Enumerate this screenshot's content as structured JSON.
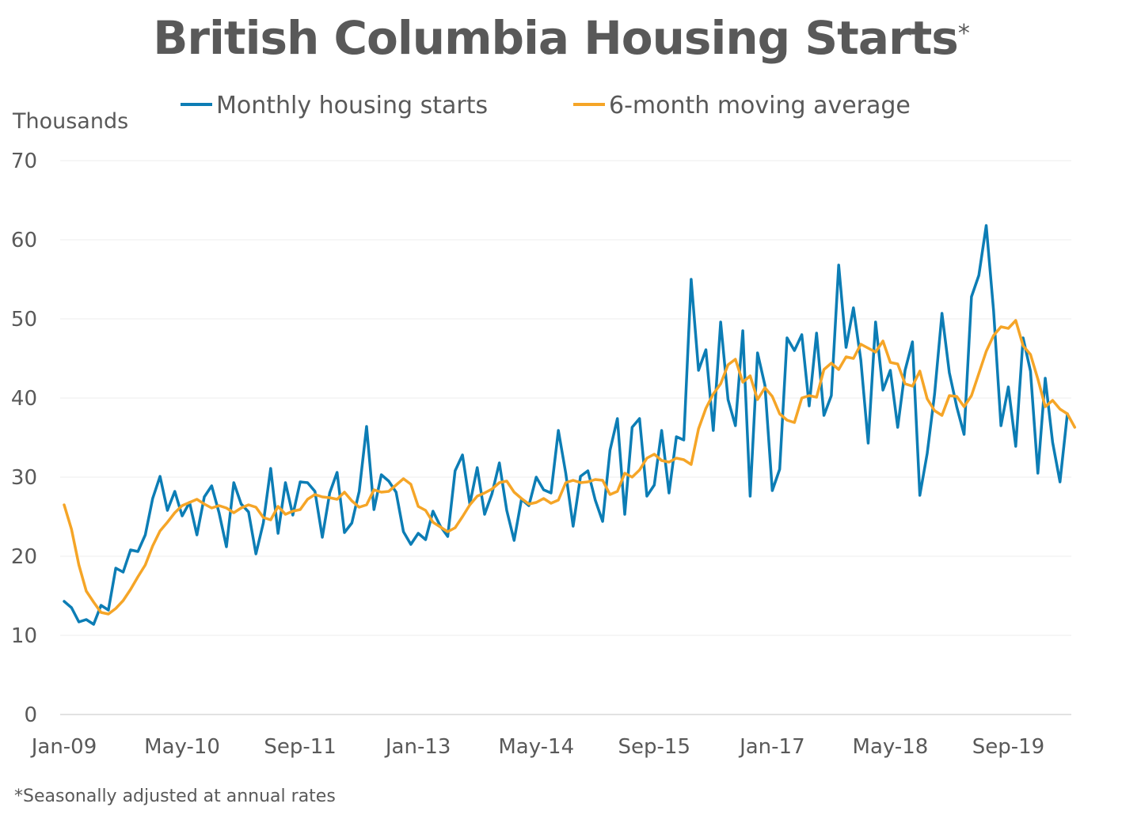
{
  "title": "British Columbia Housing Starts",
  "title_mark": "*",
  "footnote": "*Seasonally adjusted at annual rates",
  "chart_data": {
    "type": "line",
    "title": "British Columbia Housing Starts*",
    "ylabel": "Thousands",
    "ylim": [
      0,
      70
    ],
    "yticks": [
      0,
      10,
      20,
      30,
      40,
      50,
      60,
      70
    ],
    "grid": true,
    "legend_position": "top",
    "x_start": "Jan-09",
    "x_end": "Mar-20",
    "x_tick_labels": [
      {
        "label": "Jan-09",
        "index": 0
      },
      {
        "label": "May-10",
        "index": 16
      },
      {
        "label": "Sep-11",
        "index": 32
      },
      {
        "label": "Jan-13",
        "index": 48
      },
      {
        "label": "May-14",
        "index": 64
      },
      {
        "label": "Sep-15",
        "index": 80
      },
      {
        "label": "Jan-17",
        "index": 96
      },
      {
        "label": "May-18",
        "index": 112
      },
      {
        "label": "Sep-19",
        "index": 128
      }
    ],
    "series": [
      {
        "name": "Monthly housing starts",
        "color": "#0c7db5",
        "values": [
          14.3,
          13.5,
          11.7,
          12.0,
          11.4,
          13.8,
          13.2,
          18.5,
          18.0,
          20.8,
          20.6,
          22.7,
          27.3,
          30.1,
          25.8,
          28.2,
          25.1,
          26.8,
          22.7,
          27.5,
          28.9,
          25.5,
          21.2,
          29.3,
          26.6,
          25.6,
          20.3,
          24.2,
          31.1,
          22.9,
          29.3,
          25.2,
          29.4,
          29.3,
          28.2,
          22.4,
          28.0,
          30.6,
          23.0,
          24.2,
          28.2,
          36.4,
          25.9,
          30.3,
          29.5,
          28.1,
          23.1,
          21.5,
          22.9,
          22.1,
          25.7,
          23.8,
          22.5,
          30.8,
          32.8,
          26.6,
          31.2,
          25.3,
          27.9,
          31.8,
          25.8,
          22.0,
          27.2,
          26.4,
          30.0,
          28.4,
          28.0,
          35.9,
          30.5,
          23.8,
          30.1,
          30.8,
          27.1,
          24.4,
          33.4,
          37.4,
          25.3,
          36.3,
          37.4,
          27.6,
          29.0,
          35.9,
          28.0,
          35.1,
          34.7,
          55.0,
          43.5,
          46.1,
          35.9,
          49.6,
          39.8,
          36.5,
          48.5,
          27.6,
          45.7,
          41.6,
          28.3,
          31.0,
          47.6,
          46.0,
          48.0,
          39.0,
          48.2,
          37.8,
          40.3,
          56.8,
          46.4,
          51.4,
          44.8,
          34.3,
          49.6,
          41.0,
          43.5,
          36.3,
          43.5,
          47.1,
          27.7,
          33.0,
          40.5,
          50.7,
          43.2,
          38.9,
          35.4,
          52.8,
          55.5,
          61.8,
          51.0,
          36.5,
          41.4,
          33.9,
          47.6,
          43.4,
          30.5,
          42.5,
          34.4,
          29.4,
          38.0
        ]
      },
      {
        "name": "6-month moving average",
        "color": "#f5a527",
        "values": [
          26.5,
          23.4,
          18.9,
          15.6,
          14.2,
          12.9,
          12.7,
          13.4,
          14.4,
          15.8,
          17.4,
          18.9,
          21.3,
          23.2,
          24.3,
          25.5,
          26.4,
          26.8,
          27.2,
          26.6,
          26.1,
          26.4,
          26.1,
          25.5,
          26.1,
          26.5,
          26.2,
          24.9,
          24.6,
          26.3,
          25.3,
          25.7,
          25.9,
          27.2,
          27.8,
          27.5,
          27.4,
          27.2,
          28.1,
          27.0,
          26.2,
          26.5,
          28.4,
          28.1,
          28.2,
          29.0,
          29.8,
          29.1,
          26.3,
          25.8,
          24.3,
          23.7,
          23.1,
          23.6,
          25.0,
          26.5,
          27.6,
          28.0,
          28.5,
          29.3,
          29.5,
          28.1,
          27.3,
          26.6,
          26.8,
          27.3,
          26.7,
          27.1,
          29.3,
          29.6,
          29.3,
          29.4,
          29.7,
          29.6,
          27.8,
          28.2,
          30.5,
          30.0,
          30.9,
          32.4,
          32.9,
          32.1,
          31.9,
          32.4,
          32.2,
          31.6,
          36.1,
          38.7,
          40.5,
          41.8,
          44.2,
          44.9,
          42.0,
          42.8,
          39.8,
          41.3,
          40.2,
          38.0,
          37.2,
          36.9,
          40.0,
          40.3,
          40.1,
          43.6,
          44.4,
          43.6,
          45.2,
          45.0,
          46.8,
          46.3,
          45.8,
          47.2,
          44.5,
          44.3,
          41.8,
          41.5,
          43.4,
          39.9,
          38.4,
          37.8,
          40.3,
          40.2,
          38.9,
          40.3,
          43.1,
          45.9,
          47.9,
          49.0,
          48.8,
          49.8,
          46.6,
          45.5,
          42.4,
          38.9,
          39.7,
          38.6,
          38.0,
          36.3
        ]
      }
    ]
  }
}
